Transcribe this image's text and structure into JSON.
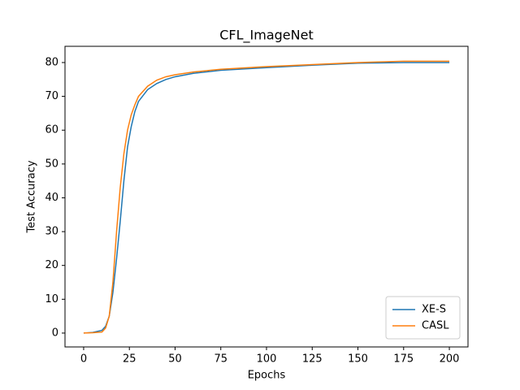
{
  "chart_data": {
    "type": "line",
    "title": "CFL_ImageNet",
    "xlabel": "Epochs",
    "ylabel": "Test Accuracy",
    "x": [
      0,
      5,
      10,
      12,
      14,
      16,
      18,
      20,
      22,
      24,
      26,
      28,
      30,
      35,
      40,
      45,
      50,
      60,
      75,
      100,
      125,
      150,
      175,
      200
    ],
    "series": [
      {
        "name": "XE-S",
        "color": "#1f77b4",
        "values": [
          0,
          0.2,
          0.8,
          2,
          5,
          12,
          22,
          33,
          45,
          55,
          61,
          65.5,
          68.5,
          72,
          73.8,
          75,
          75.8,
          76.8,
          77.7,
          78.5,
          79.2,
          79.8,
          80,
          80
        ]
      },
      {
        "name": "CASL",
        "color": "#ff7f0e",
        "values": [
          0,
          0.1,
          0.3,
          1.5,
          5,
          15,
          30,
          43,
          53,
          60,
          64.5,
          67.5,
          70,
          73,
          74.8,
          75.8,
          76.4,
          77.2,
          78,
          78.8,
          79.4,
          80,
          80.4,
          80.4
        ]
      }
    ],
    "xlim": [
      -10.2,
      210.2
    ],
    "ylim": [
      -4.1,
      84.8
    ],
    "xticks": [
      0,
      25,
      50,
      75,
      100,
      125,
      150,
      175,
      200
    ],
    "yticks": [
      0,
      10,
      20,
      30,
      40,
      50,
      60,
      70,
      80
    ],
    "legend": "lower right"
  }
}
